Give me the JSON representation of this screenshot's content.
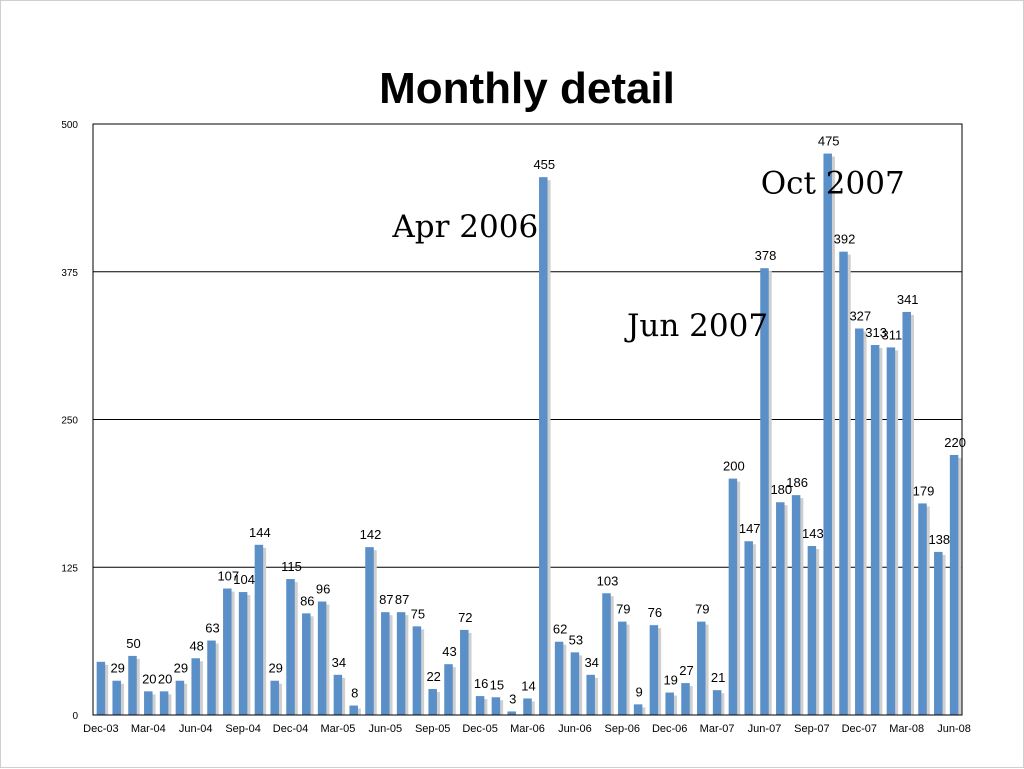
{
  "chart_data": {
    "type": "bar",
    "title": "Monthly detail",
    "xlabel": "",
    "ylabel": "",
    "ylim": [
      0,
      500
    ],
    "yticks": [
      0,
      125,
      250,
      375,
      500
    ],
    "grid": true,
    "categories": [
      "Dec-03",
      "Jan-04",
      "Feb-04",
      "Mar-04",
      "Apr-04",
      "May-04",
      "Jun-04",
      "Jul-04",
      "Aug-04",
      "Sep-04",
      "Oct-04",
      "Nov-04",
      "Dec-04",
      "Jan-05",
      "Feb-05",
      "Mar-05",
      "Apr-05",
      "May-05",
      "Jun-05",
      "Jul-05",
      "Aug-05",
      "Sep-05",
      "Oct-05",
      "Nov-05",
      "Dec-05",
      "Jan-06",
      "Feb-06",
      "Mar-06",
      "Apr-06",
      "May-06",
      "Jun-06",
      "Jul-06",
      "Aug-06",
      "Sep-06",
      "Oct-06",
      "Nov-06",
      "Dec-06",
      "Jan-07",
      "Feb-07",
      "Mar-07",
      "Apr-07",
      "May-07",
      "Jun-07",
      "Jul-07",
      "Aug-07",
      "Sep-07",
      "Oct-07",
      "Nov-07",
      "Dec-07",
      "Jan-08",
      "Feb-08",
      "Mar-08",
      "Apr-08",
      "May-08",
      "Jun-08"
    ],
    "x_tick_labels": [
      "Dec-03",
      "Mar-04",
      "Jun-04",
      "Sep-04",
      "Dec-04",
      "Mar-05",
      "Jun-05",
      "Sep-05",
      "Dec-05",
      "Mar-06",
      "Jun-06",
      "Sep-06",
      "Dec-06",
      "Mar-07",
      "Jun-07",
      "Sep-07",
      "Dec-07",
      "Mar-08",
      "Jun-08"
    ],
    "values": [
      45,
      29,
      50,
      20,
      20,
      29,
      48,
      63,
      107,
      104,
      144,
      29,
      115,
      86,
      96,
      34,
      8,
      142,
      87,
      87,
      75,
      22,
      43,
      72,
      16,
      15,
      3,
      14,
      455,
      62,
      53,
      34,
      103,
      79,
      9,
      76,
      19,
      27,
      79,
      21,
      200,
      147,
      378,
      180,
      186,
      143,
      475,
      392,
      327,
      313,
      311,
      341,
      179,
      138,
      220
    ],
    "data_labels": [
      "",
      "29",
      "50",
      "20",
      "20",
      "29",
      "48",
      "63",
      "107",
      "104",
      "144",
      "29",
      "115",
      "86",
      "96",
      "34",
      "8",
      "142",
      "87",
      "87",
      "75",
      "22",
      "43",
      "72",
      "16",
      "15",
      "3",
      "14",
      "455",
      "62",
      "53",
      "34",
      "103",
      "79",
      "9",
      "76",
      "19",
      "27",
      "79",
      "21",
      "200",
      "147",
      "378",
      "180",
      "186",
      "143",
      "475",
      "392",
      "327",
      "313",
      "311",
      "341",
      "179",
      "138",
      "220"
    ],
    "bar_color": "#5b8fc8",
    "annotations": [
      "Apr 2006",
      "Jun 2007",
      "Oct 2007"
    ]
  }
}
